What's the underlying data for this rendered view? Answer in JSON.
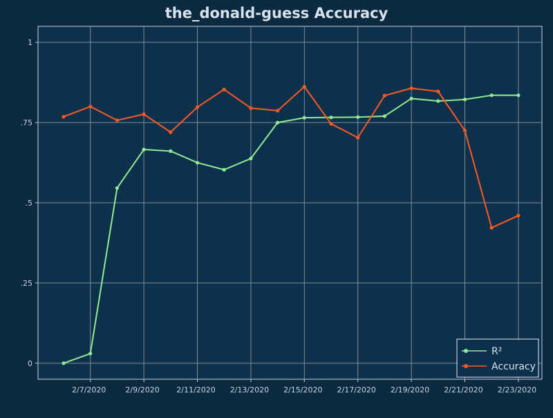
{
  "chart_data": {
    "type": "line",
    "title": "the_donald-guess Accuracy",
    "xlabel": "",
    "ylabel": "",
    "x": [
      "2/6/2020",
      "2/7/2020",
      "2/8/2020",
      "2/9/2020",
      "2/10/2020",
      "2/11/2020",
      "2/12/2020",
      "2/13/2020",
      "2/14/2020",
      "2/15/2020",
      "2/16/2020",
      "2/17/2020",
      "2/18/2020",
      "2/19/2020",
      "2/20/2020",
      "2/21/2020",
      "2/22/2020",
      "2/23/2020"
    ],
    "x_tick_labels": [
      "2/7/2020",
      "2/9/2020",
      "2/11/2020",
      "2/13/2020",
      "2/15/2020",
      "2/17/2020",
      "2/19/2020",
      "2/21/2020",
      "2/23/2020"
    ],
    "y_tick_labels": [
      "0",
      ".25",
      ".5",
      ".75",
      "1"
    ],
    "ylim": [
      -0.05,
      1.05
    ],
    "grid": true,
    "legend_position": "bottom-right",
    "series": [
      {
        "name": "R²",
        "color": "#90ee90",
        "values": [
          0.0,
          0.03,
          0.546,
          0.666,
          0.661,
          0.625,
          0.603,
          0.638,
          0.75,
          0.765,
          0.766,
          0.767,
          0.77,
          0.825,
          0.817,
          0.822,
          0.835,
          0.835
        ]
      },
      {
        "name": "Accuracy",
        "color": "#ff5a1f",
        "values": [
          0.768,
          0.8,
          0.757,
          0.776,
          0.72,
          0.798,
          0.853,
          0.795,
          0.787,
          0.862,
          0.746,
          0.703,
          0.834,
          0.857,
          0.847,
          0.725,
          0.422,
          0.46
        ]
      }
    ]
  }
}
